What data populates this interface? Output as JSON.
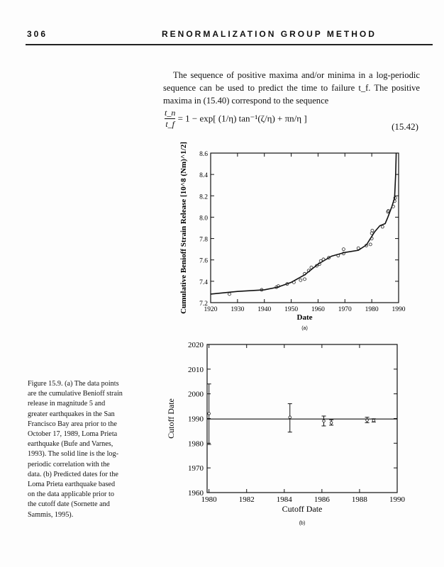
{
  "header": {
    "page_number": "306",
    "running_title": "RENORMALIZATION GROUP METHOD"
  },
  "body": {
    "paragraph": "The sequence of positive maxima and/or minima in a log-periodic sequence can be used to predict the time to failure t_f. The positive maxima in (15.40) correspond to the sequence"
  },
  "equation": {
    "lhs_num": "t_n",
    "lhs_den": "t_f",
    "rhs": "= 1 − exp[ (1/η) tan⁻¹(ζ/η) + πn/η ]",
    "number": "(15.42)"
  },
  "caption": "Figure 15.9. (a) The data points are the cumulative Benioff strain release in magnitude 5 and greater earthquakes in the San Francisco Bay area prior to the October 17, 1989, Loma Prieta earthquake (Bufe and Varnes, 1993). The solid line is the log-periodic correlation with the data. (b) Predicted dates for the Loma Prieta earthquake based on the data applicable prior to the cutoff date (Sornette and Sammis, 1995).",
  "chart_data": [
    {
      "type": "scatter",
      "panel_label": "(a)",
      "xlabel": "Date",
      "ylabel": "Cumulative Benioff Strain Release [10^8 (Nm)^1/2]",
      "xlim": [
        1920,
        1990
      ],
      "ylim": [
        7.2,
        8.6
      ],
      "xticks": [
        "1920",
        "1930",
        "1940",
        "1950",
        "1960",
        "1970",
        "1980",
        "1990"
      ],
      "yticks": [
        "7.2",
        "7.4",
        "7.6",
        "7.8",
        "8.0",
        "8.2",
        "8.4",
        "8.6"
      ],
      "points": [
        [
          1927,
          7.28
        ],
        [
          1939,
          7.32
        ],
        [
          1944.5,
          7.345
        ],
        [
          1945.2,
          7.355
        ],
        [
          1948.5,
          7.375
        ],
        [
          1951,
          7.39
        ],
        [
          1953.5,
          7.41
        ],
        [
          1955,
          7.42
        ],
        [
          1955,
          7.47
        ],
        [
          1956.5,
          7.5
        ],
        [
          1957.5,
          7.53
        ],
        [
          1959.5,
          7.545
        ],
        [
          1960.5,
          7.56
        ],
        [
          1961,
          7.59
        ],
        [
          1962,
          7.605
        ],
        [
          1964,
          7.62
        ],
        [
          1967.5,
          7.64
        ],
        [
          1969.5,
          7.66
        ],
        [
          1969.5,
          7.7
        ],
        [
          1975,
          7.71
        ],
        [
          1978,
          7.735
        ],
        [
          1979.5,
          7.745
        ],
        [
          1980,
          7.8
        ],
        [
          1980,
          7.85
        ],
        [
          1980.2,
          7.875
        ],
        [
          1984,
          7.91
        ],
        [
          1986,
          8.05
        ],
        [
          1986.2,
          8.06
        ],
        [
          1988,
          8.1
        ],
        [
          1988.5,
          8.15
        ],
        [
          1988.7,
          8.18
        ]
      ],
      "fit_line": [
        [
          1920,
          7.28
        ],
        [
          1930,
          7.305
        ],
        [
          1940,
          7.32
        ],
        [
          1945,
          7.345
        ],
        [
          1950,
          7.39
        ],
        [
          1955,
          7.46
        ],
        [
          1960,
          7.56
        ],
        [
          1965,
          7.635
        ],
        [
          1970,
          7.67
        ],
        [
          1975,
          7.69
        ],
        [
          1978,
          7.74
        ],
        [
          1981,
          7.86
        ],
        [
          1983,
          7.92
        ],
        [
          1985,
          7.94
        ],
        [
          1986,
          8.0
        ],
        [
          1987.5,
          8.1
        ],
        [
          1988.5,
          8.18
        ],
        [
          1988.9,
          8.4
        ],
        [
          1989.1,
          8.6
        ]
      ]
    },
    {
      "type": "scatter",
      "panel_label": "(b)",
      "xlabel": "Cutoff Date",
      "ylabel": "Cutoff Date",
      "xlim": [
        1979.9,
        1990
      ],
      "ylim": [
        1960,
        2020
      ],
      "xticks": [
        "1980",
        "1982",
        "1984",
        "1986",
        "1988",
        "1990"
      ],
      "yticks": [
        "1960",
        "1970",
        "1980",
        "1990",
        "2000",
        "2010",
        "2020"
      ],
      "reference_line": 1989.8,
      "points": [
        {
          "x": 1980,
          "y": 1992,
          "lo": 1979.5,
          "hi": 2004
        },
        {
          "x": 1984.3,
          "y": 1990.5,
          "lo": 1984.5,
          "hi": 1996
        },
        {
          "x": 1986.1,
          "y": 1989,
          "lo": 1987,
          "hi": 1991
        },
        {
          "x": 1986.5,
          "y": 1988.3,
          "lo": 1987.3,
          "hi": 1989.5
        },
        {
          "x": 1988.4,
          "y": 1989.3,
          "lo": 1988.3,
          "hi": 1990.5
        },
        {
          "x": 1988.75,
          "y": 1989.2,
          "lo": 1988.6,
          "hi": 1989.9
        }
      ]
    }
  ]
}
